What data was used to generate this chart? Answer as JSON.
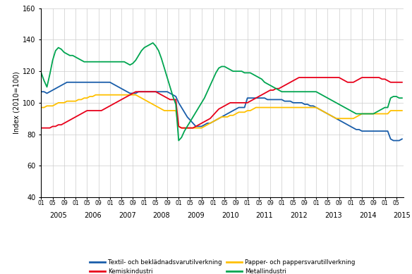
{
  "ylabel": "Index (2010=100)",
  "ylim": [
    40,
    160
  ],
  "yticks": [
    40,
    60,
    80,
    100,
    120,
    140,
    160
  ],
  "series": {
    "Textil- och beklädnadsvarutilverkning": {
      "color": "#1a5eaa",
      "data": [
        107,
        107,
        106,
        107,
        108,
        109,
        110,
        111,
        112,
        113,
        113,
        113,
        113,
        113,
        113,
        113,
        113,
        113,
        113,
        113,
        113,
        113,
        113,
        113,
        113,
        112,
        111,
        110,
        109,
        108,
        107,
        106,
        106,
        106,
        107,
        107,
        107,
        107,
        107,
        107,
        107,
        107,
        107,
        107,
        107,
        106,
        105,
        104,
        100,
        97,
        94,
        91,
        89,
        87,
        85,
        85,
        85,
        86,
        87,
        87,
        88,
        89,
        90,
        91,
        92,
        93,
        94,
        95,
        96,
        97,
        97,
        97,
        103,
        103,
        103,
        103,
        103,
        103,
        103,
        102,
        102,
        102,
        102,
        102,
        102,
        101,
        101,
        101,
        100,
        100,
        100,
        100,
        99,
        99,
        98,
        98,
        97,
        96,
        95,
        94,
        93,
        92,
        91,
        90,
        89,
        88,
        87,
        86,
        85,
        84,
        83,
        83,
        82,
        82,
        82,
        82,
        82,
        82,
        82,
        82,
        82,
        82,
        77,
        76,
        76,
        76,
        77
      ]
    },
    "Papper- och pappersvarutillverkning": {
      "color": "#ffc000",
      "data": [
        97,
        97,
        98,
        98,
        98,
        99,
        100,
        100,
        100,
        101,
        101,
        101,
        101,
        102,
        102,
        103,
        103,
        104,
        104,
        105,
        105,
        105,
        105,
        105,
        105,
        105,
        105,
        105,
        105,
        105,
        105,
        105,
        105,
        105,
        104,
        103,
        102,
        101,
        100,
        99,
        98,
        97,
        96,
        95,
        95,
        95,
        95,
        95,
        85,
        84,
        84,
        84,
        84,
        84,
        84,
        84,
        84,
        85,
        86,
        87,
        88,
        89,
        90,
        91,
        91,
        91,
        92,
        92,
        93,
        94,
        94,
        94,
        95,
        95,
        96,
        97,
        97,
        97,
        97,
        97,
        97,
        97,
        97,
        97,
        97,
        97,
        97,
        97,
        97,
        97,
        97,
        97,
        97,
        97,
        97,
        97,
        97,
        96,
        95,
        94,
        93,
        92,
        91,
        90,
        90,
        90,
        90,
        90,
        90,
        90,
        91,
        92,
        93,
        93,
        93,
        93,
        93,
        93,
        93,
        93,
        93,
        93,
        95,
        95,
        95,
        95,
        95
      ]
    },
    "Kemiskindustri": {
      "color": "#e8001a",
      "data": [
        84,
        84,
        84,
        84,
        85,
        85,
        86,
        86,
        87,
        88,
        89,
        90,
        91,
        92,
        93,
        94,
        95,
        95,
        95,
        95,
        95,
        95,
        96,
        97,
        98,
        99,
        100,
        101,
        102,
        103,
        104,
        105,
        106,
        107,
        107,
        107,
        107,
        107,
        107,
        107,
        107,
        106,
        105,
        104,
        103,
        102,
        102,
        102,
        85,
        84,
        84,
        84,
        84,
        84,
        85,
        86,
        87,
        88,
        89,
        90,
        92,
        94,
        96,
        97,
        98,
        99,
        100,
        100,
        100,
        100,
        100,
        100,
        100,
        101,
        102,
        103,
        104,
        105,
        106,
        107,
        108,
        108,
        109,
        109,
        110,
        111,
        112,
        113,
        114,
        115,
        116,
        116,
        116,
        116,
        116,
        116,
        116,
        116,
        116,
        116,
        116,
        116,
        116,
        116,
        116,
        115,
        114,
        113,
        113,
        113,
        114,
        115,
        116,
        116,
        116,
        116,
        116,
        116,
        116,
        115,
        115,
        114,
        113,
        113,
        113,
        113,
        113
      ]
    },
    "Metallindustri": {
      "color": "#00a550",
      "data": [
        119,
        114,
        110,
        118,
        127,
        133,
        135,
        134,
        132,
        131,
        130,
        130,
        129,
        128,
        127,
        126,
        126,
        126,
        126,
        126,
        126,
        126,
        126,
        126,
        126,
        126,
        126,
        126,
        126,
        126,
        125,
        124,
        125,
        127,
        130,
        133,
        135,
        136,
        137,
        138,
        136,
        133,
        128,
        122,
        116,
        110,
        104,
        99,
        76,
        78,
        82,
        85,
        88,
        91,
        94,
        97,
        100,
        103,
        107,
        111,
        115,
        119,
        122,
        123,
        123,
        122,
        121,
        120,
        120,
        120,
        120,
        119,
        119,
        119,
        118,
        117,
        116,
        115,
        113,
        112,
        111,
        110,
        109,
        108,
        107,
        107,
        107,
        107,
        107,
        107,
        107,
        107,
        107,
        107,
        107,
        107,
        107,
        106,
        105,
        104,
        103,
        102,
        101,
        100,
        99,
        98,
        97,
        96,
        95,
        94,
        93,
        93,
        93,
        93,
        93,
        93,
        93,
        94,
        95,
        96,
        97,
        97,
        103,
        104,
        104,
        103,
        103
      ]
    }
  },
  "legend": [
    {
      "label": "Textil- och beklädnadsvarutilverkning",
      "color": "#1a5eaa"
    },
    {
      "label": "Papper- och pappersvarutillverkning",
      "color": "#ffc000"
    },
    {
      "label": "Kemiskindustri",
      "color": "#e8001a"
    },
    {
      "label": "Metallindustri",
      "color": "#00a550"
    }
  ]
}
